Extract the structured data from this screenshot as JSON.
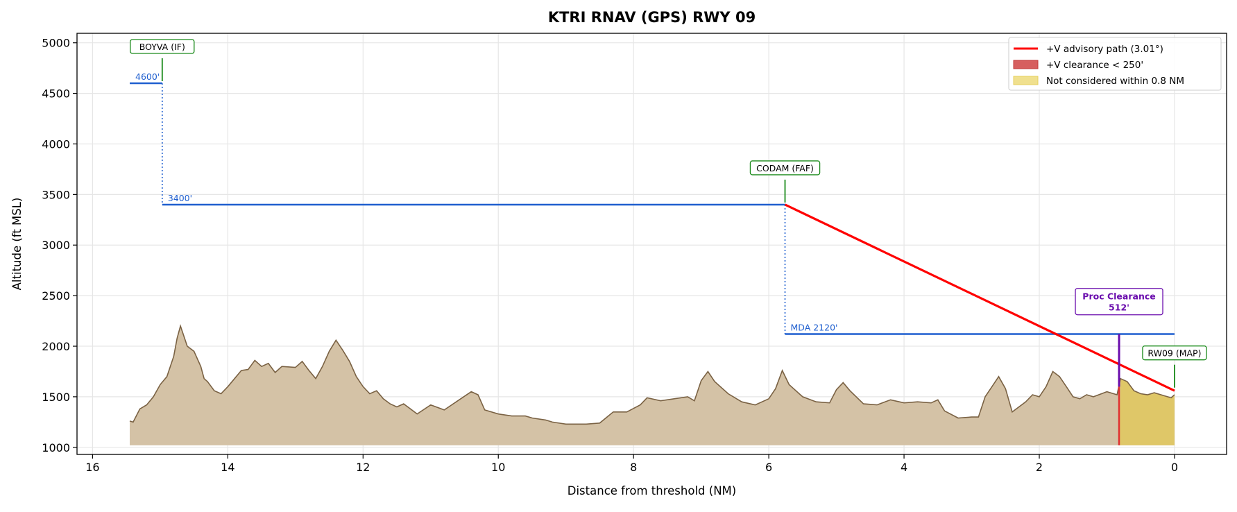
{
  "chart_data": {
    "type": "area",
    "title": "KTRI  RNAV (GPS) RWY 09",
    "xlabel": "Distance from threshold (NM)",
    "ylabel": "Altitude (ft MSL)",
    "xlim": [
      16.23,
      -0.77
    ],
    "ylim": [
      930,
      5094
    ],
    "xticks": [
      16,
      14,
      12,
      10,
      8,
      6,
      4,
      2,
      0
    ],
    "yticks": [
      1000,
      1500,
      2000,
      2500,
      3000,
      3500,
      4000,
      4500,
      5000
    ],
    "grid": true,
    "legend_position": "top-right",
    "legend": [
      {
        "label": "+V advisory path (3.01°)",
        "kind": "line",
        "color": "#ff0000"
      },
      {
        "label": "+V clearance < 250'",
        "kind": "patch",
        "color": "#d65f5f",
        "edge": "#c03a3a"
      },
      {
        "label": "Not considered within 0.8 NM",
        "kind": "patch",
        "color": "#f0e08e",
        "edge": "#e6cf5c"
      }
    ],
    "terrain_base": 1020,
    "terrain": [
      [
        15.45,
        1260
      ],
      [
        15.4,
        1250
      ],
      [
        15.3,
        1380
      ],
      [
        15.2,
        1420
      ],
      [
        15.1,
        1500
      ],
      [
        15.0,
        1620
      ],
      [
        14.9,
        1700
      ],
      [
        14.8,
        1900
      ],
      [
        14.75,
        2080
      ],
      [
        14.7,
        2200
      ],
      [
        14.65,
        2100
      ],
      [
        14.6,
        2000
      ],
      [
        14.5,
        1950
      ],
      [
        14.4,
        1800
      ],
      [
        14.35,
        1680
      ],
      [
        14.3,
        1650
      ],
      [
        14.2,
        1560
      ],
      [
        14.1,
        1530
      ],
      [
        14.0,
        1600
      ],
      [
        13.9,
        1680
      ],
      [
        13.8,
        1760
      ],
      [
        13.7,
        1770
      ],
      [
        13.6,
        1860
      ],
      [
        13.5,
        1800
      ],
      [
        13.4,
        1830
      ],
      [
        13.3,
        1740
      ],
      [
        13.2,
        1800
      ],
      [
        13.0,
        1790
      ],
      [
        12.9,
        1850
      ],
      [
        12.8,
        1760
      ],
      [
        12.7,
        1680
      ],
      [
        12.6,
        1800
      ],
      [
        12.5,
        1950
      ],
      [
        12.4,
        2060
      ],
      [
        12.3,
        1960
      ],
      [
        12.2,
        1850
      ],
      [
        12.1,
        1700
      ],
      [
        12.0,
        1600
      ],
      [
        11.9,
        1530
      ],
      [
        11.8,
        1560
      ],
      [
        11.7,
        1480
      ],
      [
        11.6,
        1430
      ],
      [
        11.5,
        1400
      ],
      [
        11.4,
        1430
      ],
      [
        11.2,
        1330
      ],
      [
        11.0,
        1420
      ],
      [
        10.8,
        1370
      ],
      [
        10.6,
        1460
      ],
      [
        10.4,
        1550
      ],
      [
        10.3,
        1520
      ],
      [
        10.2,
        1370
      ],
      [
        10.0,
        1330
      ],
      [
        9.8,
        1310
      ],
      [
        9.6,
        1310
      ],
      [
        9.5,
        1290
      ],
      [
        9.3,
        1270
      ],
      [
        9.2,
        1250
      ],
      [
        9.0,
        1230
      ],
      [
        8.7,
        1230
      ],
      [
        8.5,
        1240
      ],
      [
        8.3,
        1350
      ],
      [
        8.1,
        1350
      ],
      [
        7.9,
        1420
      ],
      [
        7.8,
        1490
      ],
      [
        7.6,
        1460
      ],
      [
        7.4,
        1480
      ],
      [
        7.2,
        1500
      ],
      [
        7.1,
        1460
      ],
      [
        7.0,
        1660
      ],
      [
        6.9,
        1750
      ],
      [
        6.8,
        1650
      ],
      [
        6.6,
        1530
      ],
      [
        6.4,
        1450
      ],
      [
        6.2,
        1420
      ],
      [
        6.0,
        1480
      ],
      [
        5.9,
        1580
      ],
      [
        5.8,
        1760
      ],
      [
        5.7,
        1620
      ],
      [
        5.5,
        1500
      ],
      [
        5.3,
        1450
      ],
      [
        5.1,
        1440
      ],
      [
        5.0,
        1570
      ],
      [
        4.9,
        1640
      ],
      [
        4.8,
        1560
      ],
      [
        4.6,
        1430
      ],
      [
        4.4,
        1420
      ],
      [
        4.2,
        1470
      ],
      [
        4.0,
        1440
      ],
      [
        3.8,
        1450
      ],
      [
        3.6,
        1440
      ],
      [
        3.5,
        1470
      ],
      [
        3.4,
        1360
      ],
      [
        3.2,
        1290
      ],
      [
        3.0,
        1300
      ],
      [
        2.9,
        1300
      ],
      [
        2.8,
        1500
      ],
      [
        2.7,
        1600
      ],
      [
        2.6,
        1700
      ],
      [
        2.5,
        1580
      ],
      [
        2.4,
        1350
      ],
      [
        2.2,
        1450
      ],
      [
        2.1,
        1520
      ],
      [
        2.0,
        1500
      ],
      [
        1.9,
        1600
      ],
      [
        1.8,
        1750
      ],
      [
        1.7,
        1700
      ],
      [
        1.6,
        1600
      ],
      [
        1.5,
        1500
      ],
      [
        1.4,
        1480
      ],
      [
        1.3,
        1520
      ],
      [
        1.2,
        1500
      ],
      [
        1.0,
        1550
      ],
      [
        0.85,
        1520
      ],
      [
        0.8,
        1680
      ],
      [
        0.7,
        1650
      ],
      [
        0.6,
        1560
      ],
      [
        0.5,
        1530
      ],
      [
        0.4,
        1520
      ],
      [
        0.3,
        1540
      ],
      [
        0.15,
        1510
      ],
      [
        0.05,
        1490
      ],
      [
        0,
        1520
      ]
    ],
    "exclusion_nm": 0.82,
    "advisory_path": {
      "from": [
        5.76,
        3400
      ],
      "to": [
        0,
        1560
      ],
      "angle_deg": 3.01
    },
    "segments": [
      {
        "name": "4600",
        "label": "4600'",
        "from": 15.45,
        "to": 14.97,
        "alt": 4600
      },
      {
        "name": "3400",
        "label": "3400'",
        "from": 14.97,
        "to": 5.76,
        "alt": 3400
      },
      {
        "name": "mda",
        "label": "MDA 2120'",
        "from": 5.76,
        "to": 0,
        "alt": 2120
      }
    ],
    "step_downs": [
      {
        "x": 14.97,
        "from": 4600,
        "to": 3400
      },
      {
        "x": 5.76,
        "from": 3400,
        "to": 2120
      }
    ],
    "fixes": [
      {
        "label": "BOYVA (IF)",
        "x": 14.97,
        "alt": 4600
      },
      {
        "label": "CODAM (FAF)",
        "x": 5.76,
        "alt": 3400
      },
      {
        "label": "RW09 (MAP)",
        "x": 0,
        "alt": 1570
      }
    ],
    "proc_clearance": {
      "line1": "Proc Clearance",
      "line2": "512'",
      "x": 0.82,
      "from": 1600,
      "to": 2120,
      "color": "#6a0dad"
    },
    "colors": {
      "terrain_fill": "#d4c2a6",
      "terrain_edge": "#7a6244",
      "profile": "#1f5fcf",
      "fix": "#1a8a1a"
    }
  }
}
